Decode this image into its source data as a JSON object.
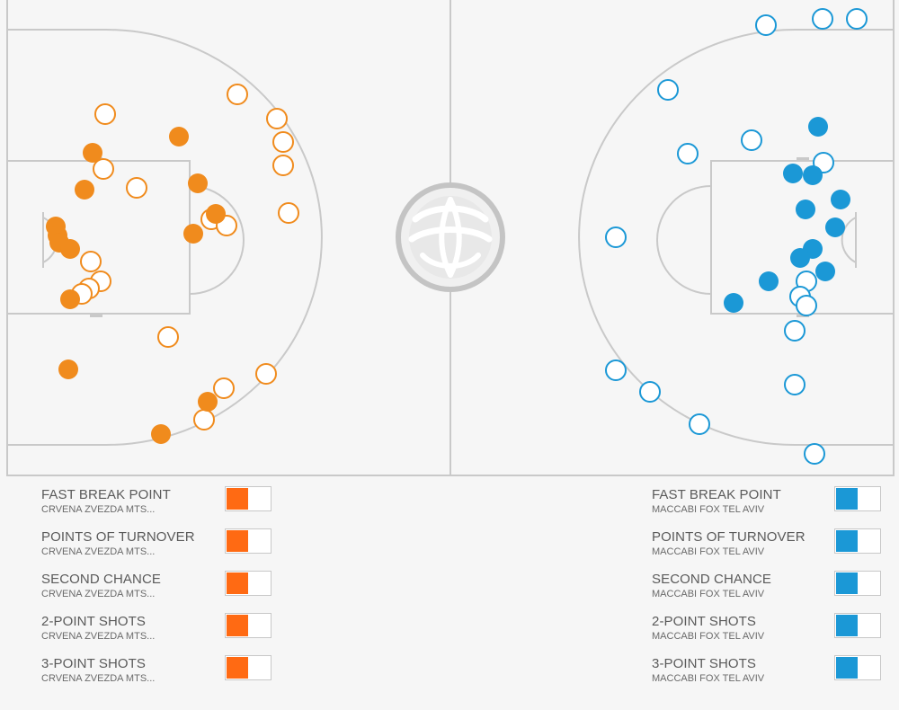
{
  "colors": {
    "home": "#f08b1d",
    "away": "#1b98d6",
    "toggle_home": "#ff6a13",
    "toggle_away": "#1b98d6",
    "court_bg": "#f6f6f6",
    "court_lines": "#c9c9c9"
  },
  "center_logo": {
    "icon": "euroleague-ball-logo"
  },
  "home": {
    "team": "CRVENA ZVEZDA MTS...",
    "made": [
      [
        199,
        152
      ],
      [
        103,
        170
      ],
      [
        94,
        211
      ],
      [
        220,
        204
      ],
      [
        240,
        238
      ],
      [
        215,
        260
      ],
      [
        62,
        252
      ],
      [
        64,
        262
      ],
      [
        66,
        270
      ],
      [
        78,
        277
      ],
      [
        78,
        333
      ],
      [
        76,
        411
      ],
      [
        231,
        447
      ],
      [
        179,
        483
      ]
    ],
    "missed": [
      [
        264,
        105
      ],
      [
        117,
        127
      ],
      [
        308,
        132
      ],
      [
        315,
        158
      ],
      [
        315,
        184
      ],
      [
        115,
        188
      ],
      [
        152,
        209
      ],
      [
        321,
        237
      ],
      [
        235,
        244
      ],
      [
        252,
        251
      ],
      [
        101,
        291
      ],
      [
        112,
        313
      ],
      [
        99,
        321
      ],
      [
        91,
        327
      ],
      [
        187,
        375
      ],
      [
        296,
        416
      ],
      [
        249,
        432
      ],
      [
        227,
        467
      ]
    ]
  },
  "away": {
    "team": "MACCABI FOX TEL AVIV",
    "made": [
      [
        910,
        141
      ],
      [
        882,
        193
      ],
      [
        904,
        195
      ],
      [
        935,
        222
      ],
      [
        896,
        233
      ],
      [
        929,
        253
      ],
      [
        904,
        277
      ],
      [
        890,
        287
      ],
      [
        918,
        302
      ],
      [
        855,
        313
      ],
      [
        816,
        337
      ]
    ],
    "missed": [
      [
        852,
        28
      ],
      [
        915,
        21
      ],
      [
        953,
        21
      ],
      [
        743,
        100
      ],
      [
        836,
        156
      ],
      [
        765,
        171
      ],
      [
        916,
        181
      ],
      [
        685,
        264
      ],
      [
        897,
        313
      ],
      [
        890,
        330
      ],
      [
        897,
        340
      ],
      [
        884,
        368
      ],
      [
        685,
        412
      ],
      [
        723,
        436
      ],
      [
        884,
        428
      ],
      [
        778,
        472
      ],
      [
        906,
        505
      ]
    ]
  },
  "legend": {
    "left": [
      {
        "label": "FAST BREAK POINT",
        "team": "CRVENA ZVEZDA MTS..."
      },
      {
        "label": "POINTS OF TURNOVER",
        "team": "CRVENA ZVEZDA MTS..."
      },
      {
        "label": "SECOND CHANCE",
        "team": "CRVENA ZVEZDA MTS..."
      },
      {
        "label": "2-POINT SHOTS",
        "team": "CRVENA ZVEZDA MTS..."
      },
      {
        "label": "3-POINT SHOTS",
        "team": "CRVENA ZVEZDA MTS..."
      }
    ],
    "right": [
      {
        "label": "FAST BREAK POINT",
        "team": "MACCABI FOX TEL AVIV"
      },
      {
        "label": "POINTS OF TURNOVER",
        "team": "MACCABI FOX TEL AVIV"
      },
      {
        "label": "SECOND CHANCE",
        "team": "MACCABI FOX TEL AVIV"
      },
      {
        "label": "2-POINT SHOTS",
        "team": "MACCABI FOX TEL AVIV"
      },
      {
        "label": "3-POINT SHOTS",
        "team": "MACCABI FOX TEL AVIV"
      }
    ]
  }
}
